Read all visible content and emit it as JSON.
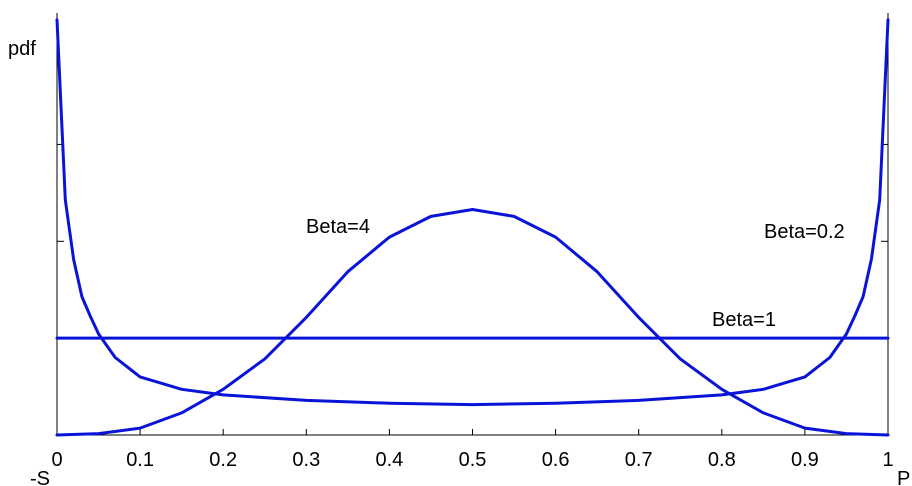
{
  "chart_data": {
    "type": "line",
    "ylabel": "pdf",
    "xlim": [
      0,
      1
    ],
    "x_ticks": [
      "0",
      "0.1",
      "0.2",
      "0.3",
      "0.4",
      "0.5",
      "0.6",
      "0.7",
      "0.8",
      "0.9",
      "1"
    ],
    "x_end_labels": {
      "left": "-S",
      "right": "P"
    },
    "grid": false,
    "legend": "none",
    "colors": {
      "series": "#0a14d8",
      "axis": "#000000"
    },
    "series": [
      {
        "name": "Beta=4",
        "x": [
          0.0,
          0.05,
          0.1,
          0.15,
          0.2,
          0.25,
          0.3,
          0.35,
          0.4,
          0.45,
          0.5,
          0.55,
          0.6,
          0.65,
          0.7,
          0.75,
          0.8,
          0.85,
          0.9,
          0.95,
          1.0
        ],
        "y": [
          0.0,
          0.01,
          0.05,
          0.16,
          0.33,
          0.55,
          0.85,
          1.18,
          1.43,
          1.58,
          1.63,
          1.58,
          1.43,
          1.18,
          0.85,
          0.55,
          0.33,
          0.16,
          0.05,
          0.01,
          0.0
        ]
      },
      {
        "name": "Beta=1",
        "x": [
          0.0,
          1.0
        ],
        "y": [
          0.7,
          0.7
        ]
      },
      {
        "name": "Beta=0.2",
        "x": [
          0.0,
          0.01,
          0.02,
          0.03,
          0.04,
          0.05,
          0.07,
          0.1,
          0.15,
          0.2,
          0.3,
          0.4,
          0.5,
          0.6,
          0.7,
          0.8,
          0.85,
          0.9,
          0.93,
          0.95,
          0.96,
          0.97,
          0.98,
          0.99,
          1.0
        ],
        "y": [
          3.0,
          1.7,
          1.27,
          1.0,
          0.86,
          0.73,
          0.56,
          0.42,
          0.33,
          0.29,
          0.25,
          0.23,
          0.22,
          0.23,
          0.25,
          0.29,
          0.33,
          0.42,
          0.56,
          0.73,
          0.86,
          1.0,
          1.27,
          1.7,
          3.0
        ]
      }
    ],
    "annotations": [
      {
        "text": "Beta=4",
        "series": "Beta=4"
      },
      {
        "text": "Beta=1",
        "series": "Beta=1"
      },
      {
        "text": "Beta=0.2",
        "series": "Beta=0.2"
      }
    ]
  }
}
